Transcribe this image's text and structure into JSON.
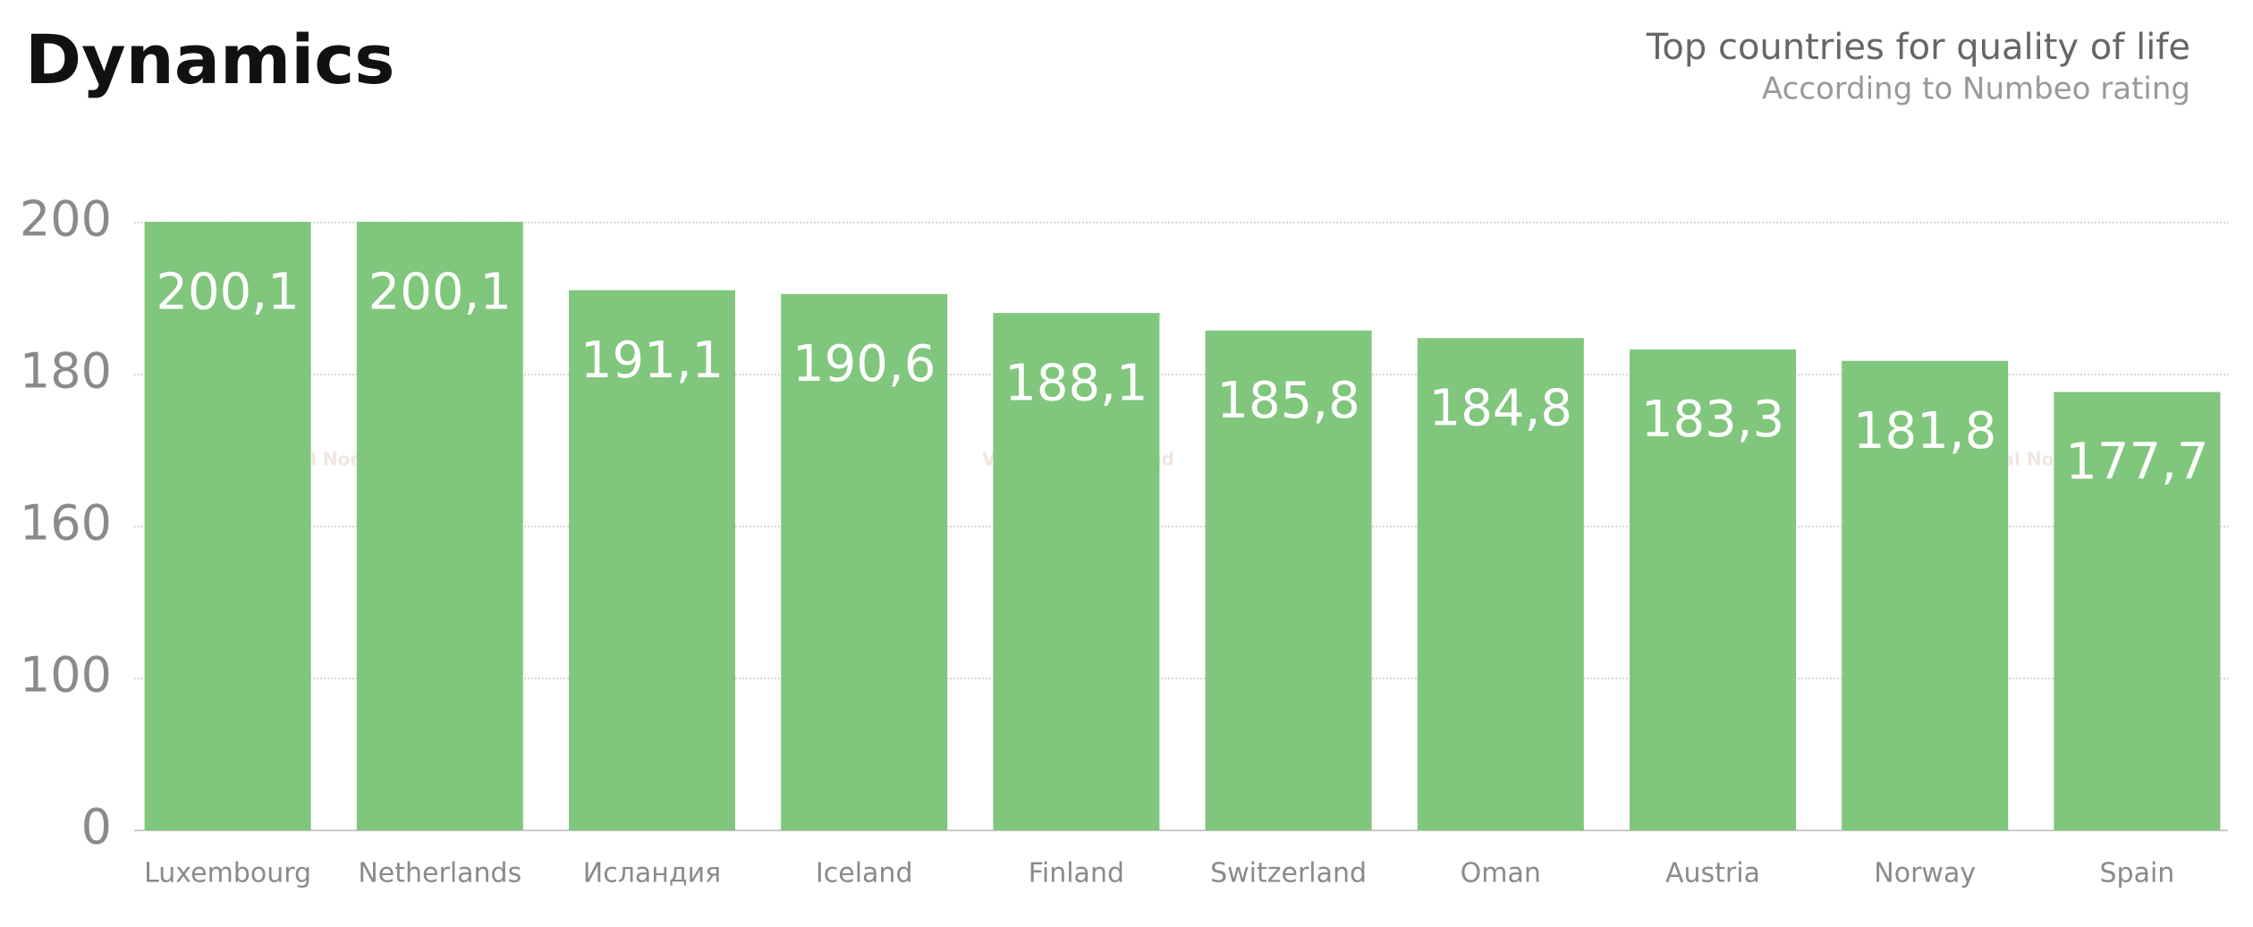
{
  "chart_data": {
    "type": "bar",
    "title": "Dynamics",
    "subtitle": [
      "Top countries for quality of life",
      "According to Numbeo rating"
    ],
    "watermark": "Visa Digital Nomad",
    "categories": [
      "Luxembourg",
      "Netherlands",
      "Исландия",
      "Iceland",
      "Finland",
      "Switzerland",
      "Oman",
      "Austria",
      "Norway",
      "Spain"
    ],
    "values": [
      200.1,
      200.1,
      191.1,
      190.6,
      188.1,
      185.8,
      184.8,
      183.3,
      181.8,
      177.7
    ],
    "value_labels": [
      "200,1",
      "200,1",
      "191,1",
      "190,6",
      "188,1",
      "185,8",
      "184,8",
      "183,3",
      "181,8",
      "177,7"
    ],
    "color": "#80c67c",
    "ylim": [
      0,
      200
    ],
    "yticks": [
      0,
      100,
      160,
      180,
      200
    ],
    "grid": true
  }
}
